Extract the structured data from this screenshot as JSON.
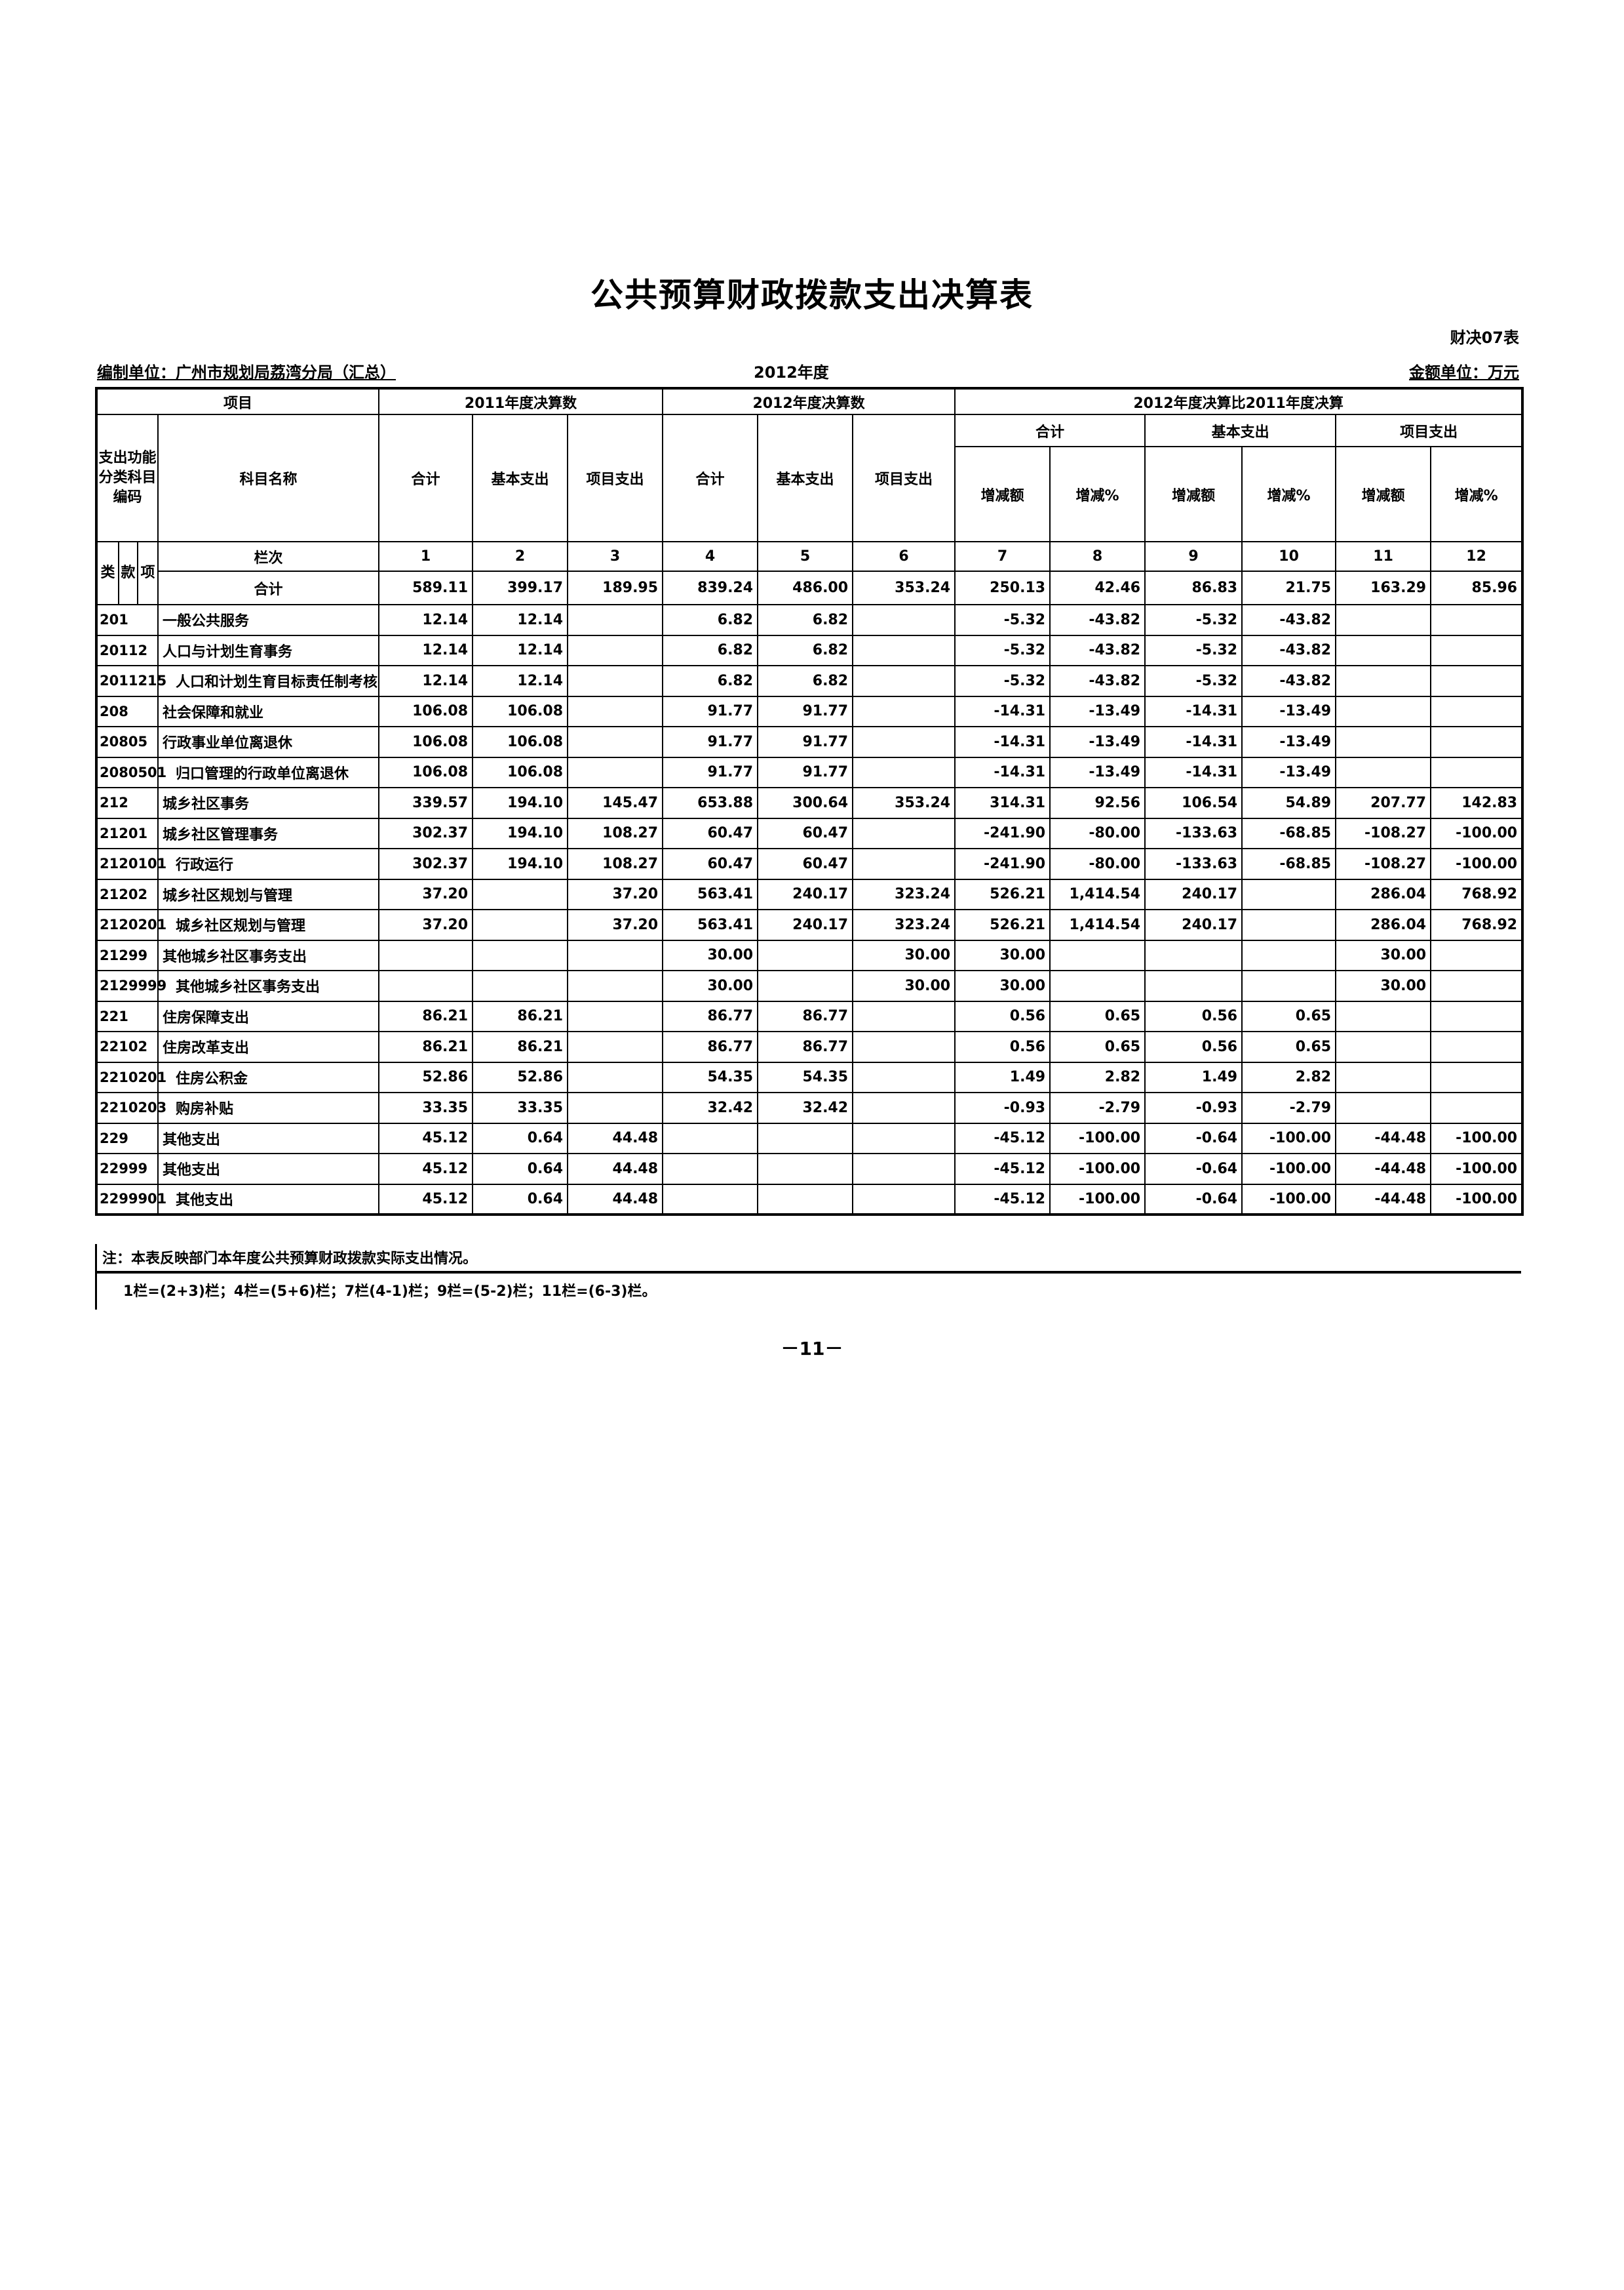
{
  "title": "公共预算财政拨款支出决算表",
  "form_no": "财决07表",
  "org": "编制单位：广州市规划局荔湾分局（汇总）",
  "year": "2012年度",
  "unit": "金额单位：万元",
  "header": {
    "item": "项目",
    "g2011": "2011年度决算数",
    "g2012": "2012年度决算数",
    "gcmp": "2012年度决算比2011年度决算",
    "code_label": "支出功能分类科目编码",
    "name_label": "科目名称",
    "total": "合计",
    "basic": "基本支出",
    "project": "项目支出",
    "amt": "增减额",
    "pct": "增减%",
    "lei": "类",
    "kuan": "款",
    "xiang": "项",
    "col_no_label": "栏次",
    "col_nos": [
      "1",
      "2",
      "3",
      "4",
      "5",
      "6",
      "7",
      "8",
      "9",
      "10",
      "11",
      "12"
    ]
  },
  "total_row": {
    "name": "合计",
    "values": [
      "589.11",
      "399.17",
      "189.95",
      "839.24",
      "486.00",
      "353.24",
      "250.13",
      "42.46",
      "86.83",
      "21.75",
      "163.29",
      "85.96"
    ]
  },
  "rows": [
    {
      "code": "201",
      "name": "一般公共服务",
      "indent": false,
      "values": [
        "12.14",
        "12.14",
        "",
        "6.82",
        "6.82",
        "",
        "-5.32",
        "-43.82",
        "-5.32",
        "-43.82",
        "",
        ""
      ]
    },
    {
      "code": "20112",
      "name": "人口与计划生育事务",
      "indent": false,
      "values": [
        "12.14",
        "12.14",
        "",
        "6.82",
        "6.82",
        "",
        "-5.32",
        "-43.82",
        "-5.32",
        "-43.82",
        "",
        ""
      ]
    },
    {
      "code": "2011215",
      "name": "人口和计划生育目标责任制考核",
      "indent": true,
      "values": [
        "12.14",
        "12.14",
        "",
        "6.82",
        "6.82",
        "",
        "-5.32",
        "-43.82",
        "-5.32",
        "-43.82",
        "",
        ""
      ]
    },
    {
      "code": "208",
      "name": "社会保障和就业",
      "indent": false,
      "values": [
        "106.08",
        "106.08",
        "",
        "91.77",
        "91.77",
        "",
        "-14.31",
        "-13.49",
        "-14.31",
        "-13.49",
        "",
        ""
      ]
    },
    {
      "code": "20805",
      "name": "行政事业单位离退休",
      "indent": false,
      "values": [
        "106.08",
        "106.08",
        "",
        "91.77",
        "91.77",
        "",
        "-14.31",
        "-13.49",
        "-14.31",
        "-13.49",
        "",
        ""
      ]
    },
    {
      "code": "2080501",
      "name": "归口管理的行政单位离退休",
      "indent": true,
      "values": [
        "106.08",
        "106.08",
        "",
        "91.77",
        "91.77",
        "",
        "-14.31",
        "-13.49",
        "-14.31",
        "-13.49",
        "",
        ""
      ]
    },
    {
      "code": "212",
      "name": "城乡社区事务",
      "indent": false,
      "values": [
        "339.57",
        "194.10",
        "145.47",
        "653.88",
        "300.64",
        "353.24",
        "314.31",
        "92.56",
        "106.54",
        "54.89",
        "207.77",
        "142.83"
      ]
    },
    {
      "code": "21201",
      "name": "城乡社区管理事务",
      "indent": false,
      "values": [
        "302.37",
        "194.10",
        "108.27",
        "60.47",
        "60.47",
        "",
        "-241.90",
        "-80.00",
        "-133.63",
        "-68.85",
        "-108.27",
        "-100.00"
      ]
    },
    {
      "code": "2120101",
      "name": "行政运行",
      "indent": true,
      "values": [
        "302.37",
        "194.10",
        "108.27",
        "60.47",
        "60.47",
        "",
        "-241.90",
        "-80.00",
        "-133.63",
        "-68.85",
        "-108.27",
        "-100.00"
      ]
    },
    {
      "code": "21202",
      "name": "城乡社区规划与管理",
      "indent": false,
      "values": [
        "37.20",
        "",
        "37.20",
        "563.41",
        "240.17",
        "323.24",
        "526.21",
        "1,414.54",
        "240.17",
        "",
        "286.04",
        "768.92"
      ]
    },
    {
      "code": "2120201",
      "name": "城乡社区规划与管理",
      "indent": true,
      "values": [
        "37.20",
        "",
        "37.20",
        "563.41",
        "240.17",
        "323.24",
        "526.21",
        "1,414.54",
        "240.17",
        "",
        "286.04",
        "768.92"
      ]
    },
    {
      "code": "21299",
      "name": "其他城乡社区事务支出",
      "indent": false,
      "values": [
        "",
        "",
        "",
        "30.00",
        "",
        "30.00",
        "30.00",
        "",
        "",
        "",
        "30.00",
        ""
      ]
    },
    {
      "code": "2129999",
      "name": "其他城乡社区事务支出",
      "indent": true,
      "values": [
        "",
        "",
        "",
        "30.00",
        "",
        "30.00",
        "30.00",
        "",
        "",
        "",
        "30.00",
        ""
      ]
    },
    {
      "code": "221",
      "name": "住房保障支出",
      "indent": false,
      "values": [
        "86.21",
        "86.21",
        "",
        "86.77",
        "86.77",
        "",
        "0.56",
        "0.65",
        "0.56",
        "0.65",
        "",
        ""
      ]
    },
    {
      "code": "22102",
      "name": "住房改革支出",
      "indent": false,
      "values": [
        "86.21",
        "86.21",
        "",
        "86.77",
        "86.77",
        "",
        "0.56",
        "0.65",
        "0.56",
        "0.65",
        "",
        ""
      ]
    },
    {
      "code": "2210201",
      "name": "住房公积金",
      "indent": true,
      "values": [
        "52.86",
        "52.86",
        "",
        "54.35",
        "54.35",
        "",
        "1.49",
        "2.82",
        "1.49",
        "2.82",
        "",
        ""
      ]
    },
    {
      "code": "2210203",
      "name": "购房补贴",
      "indent": true,
      "values": [
        "33.35",
        "33.35",
        "",
        "32.42",
        "32.42",
        "",
        "-0.93",
        "-2.79",
        "-0.93",
        "-2.79",
        "",
        ""
      ]
    },
    {
      "code": "229",
      "name": "其他支出",
      "indent": false,
      "values": [
        "45.12",
        "0.64",
        "44.48",
        "",
        "",
        "",
        "-45.12",
        "-100.00",
        "-0.64",
        "-100.00",
        "-44.48",
        "-100.00"
      ]
    },
    {
      "code": "22999",
      "name": "其他支出",
      "indent": false,
      "values": [
        "45.12",
        "0.64",
        "44.48",
        "",
        "",
        "",
        "-45.12",
        "-100.00",
        "-0.64",
        "-100.00",
        "-44.48",
        "-100.00"
      ]
    },
    {
      "code": "2299901",
      "name": "其他支出",
      "indent": true,
      "values": [
        "45.12",
        "0.64",
        "44.48",
        "",
        "",
        "",
        "-45.12",
        "-100.00",
        "-0.64",
        "-100.00",
        "-44.48",
        "-100.00"
      ]
    }
  ],
  "note": "注：本表反映部门本年度公共预算财政拨款实际支出情况。",
  "formula": "1栏=(2+3)栏；4栏=(5+6)栏；7栏(4-1)栏；9栏=(5-2)栏；11栏=(6-3)栏。",
  "page_number": "－11－"
}
